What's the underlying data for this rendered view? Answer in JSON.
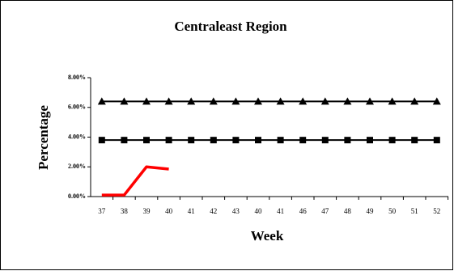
{
  "chart_data": {
    "type": "line",
    "title": "Centraleast Region",
    "x_label": "Week",
    "y_label": "Percentage",
    "categories": [
      "37",
      "38",
      "39",
      "40",
      "41",
      "42",
      "43",
      "40",
      "41",
      "46",
      "47",
      "48",
      "49",
      "50",
      "51",
      "52"
    ],
    "series": [
      {
        "color": "#000000",
        "marker": "triangle",
        "line_width": 2,
        "values": [
          6.4,
          6.4,
          6.4,
          6.4,
          6.4,
          6.4,
          6.4,
          6.4,
          6.4,
          6.4,
          6.4,
          6.4,
          6.4,
          6.4,
          6.4,
          6.4
        ]
      },
      {
        "color": "#000000",
        "marker": "square",
        "line_width": 2,
        "values": [
          3.8,
          3.8,
          3.8,
          3.8,
          3.8,
          3.8,
          3.8,
          3.8,
          3.8,
          3.8,
          3.8,
          3.8,
          3.8,
          3.8,
          3.8,
          3.8
        ]
      },
      {
        "color": "#ff0000",
        "line_width": 3.5,
        "values": [
          0.1,
          0.1,
          2.0,
          1.85,
          null,
          null,
          null,
          null,
          null,
          null,
          null,
          null,
          null,
          null,
          null,
          null
        ]
      }
    ],
    "ylim": [
      0,
      8
    ],
    "yticks": [
      {
        "value": 0,
        "label": "0.00%"
      },
      {
        "value": 2,
        "label": "2.00%"
      },
      {
        "value": 4,
        "label": "4.00%"
      },
      {
        "value": 6,
        "label": "6.00%"
      },
      {
        "value": 8,
        "label": "8.00%"
      }
    ],
    "grid": false
  }
}
